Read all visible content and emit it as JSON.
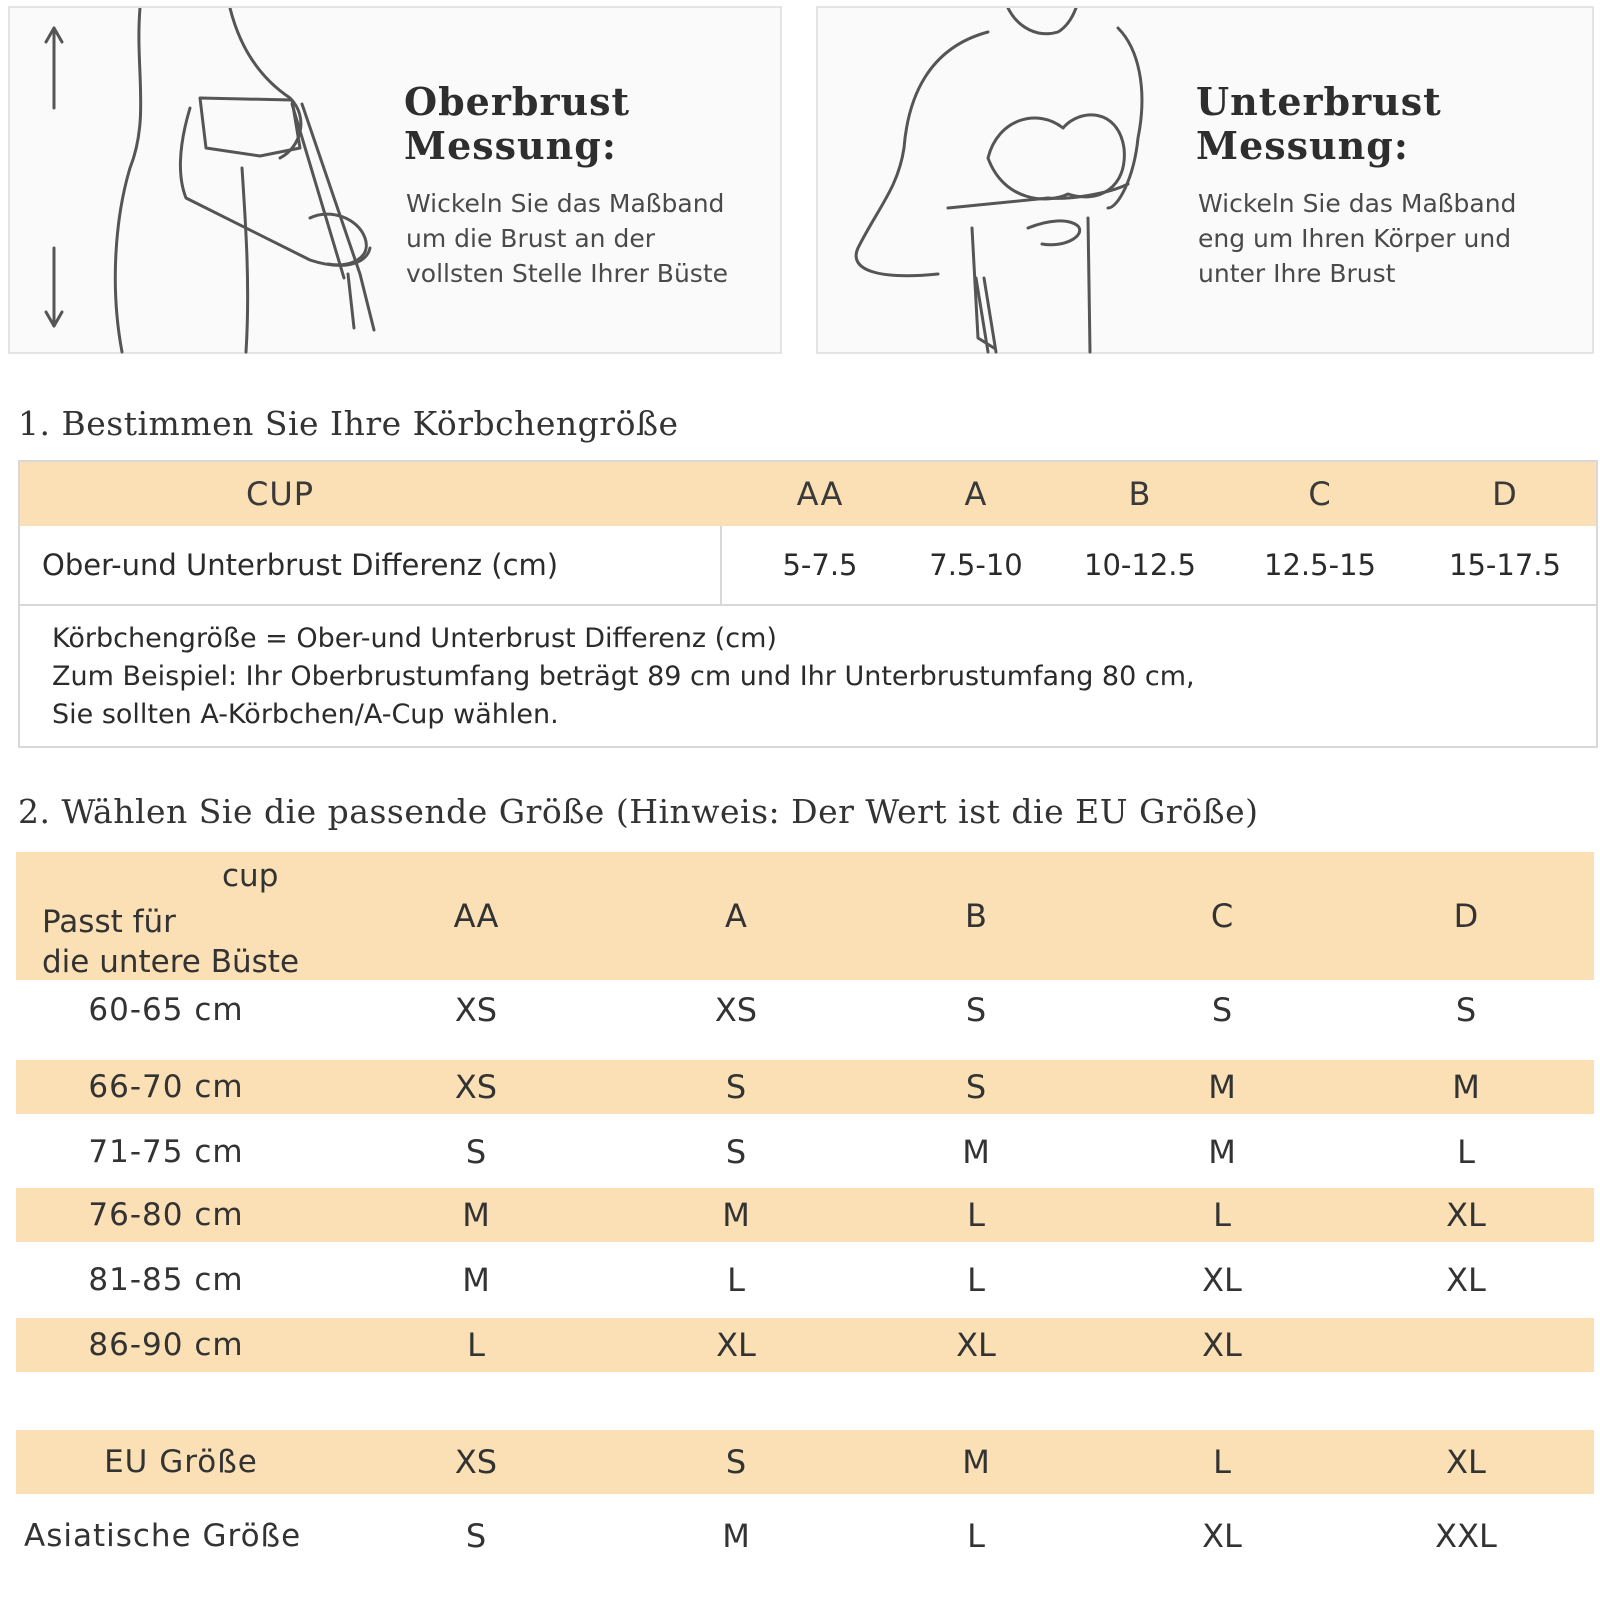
{
  "panels": {
    "left": {
      "title_line1": "Oberbrust",
      "title_line2": "Messung:",
      "text_lines": [
        "Wickeln Sie das Maßband",
        "um die Brust an der",
        "vollsten Stelle Ihrer Büste"
      ]
    },
    "right": {
      "title_line1": "Unterbrust",
      "title_line2": "Messung:",
      "text_lines": [
        "Wickeln Sie das Maßband",
        "eng um Ihren Körper und",
        "unter Ihre Brust"
      ]
    }
  },
  "section1": {
    "title": "1. Bestimmen Sie Ihre Körbchengröße",
    "header_label": "CUP",
    "cups": [
      "AA",
      "A",
      "B",
      "C",
      "D"
    ],
    "row_label": "Ober-und Unterbrust Differenz (cm)",
    "values": [
      "5-7.5",
      "7.5-10",
      "10-12.5",
      "12.5-15",
      "15-17.5"
    ],
    "note_lines": [
      "Körbchengröße = Ober-und Unterbrust Differenz (cm)",
      "Zum Beispiel: Ihr Oberbrustumfang beträgt 89 cm und Ihr Unterbrustumfang 80 cm,",
      "Sie sollten A-Körbchen/A-Cup wählen."
    ]
  },
  "section2": {
    "title": "2. Wählen Sie die passende Größe (Hinweis: Der Wert ist die EU Größe)",
    "header_cup": "cup",
    "header_bust_line1": "Passt für",
    "header_bust_line2": "die untere Büste",
    "cups": [
      "AA",
      "A",
      "B",
      "C",
      "D"
    ],
    "rows": [
      {
        "label": "60-65 cm",
        "values": [
          "XS",
          "XS",
          "S",
          "S",
          "S"
        ]
      },
      {
        "label": "66-70 cm",
        "values": [
          "XS",
          "S",
          "S",
          "M",
          "M"
        ]
      },
      {
        "label": "71-75 cm",
        "values": [
          "S",
          "S",
          "M",
          "M",
          "L"
        ]
      },
      {
        "label": "76-80 cm",
        "values": [
          "M",
          "M",
          "L",
          "L",
          "XL"
        ]
      },
      {
        "label": "81-85 cm",
        "values": [
          "M",
          "L",
          "L",
          "XL",
          "XL"
        ]
      },
      {
        "label": "86-90 cm",
        "values": [
          "L",
          "XL",
          "XL",
          "XL",
          ""
        ]
      }
    ],
    "conversion": [
      {
        "label": "EU Größe",
        "values": [
          "XS",
          "S",
          "M",
          "L",
          "XL"
        ]
      },
      {
        "label": "Asiatische Größe",
        "values": [
          "S",
          "M",
          "L",
          "XL",
          "XXL"
        ]
      }
    ]
  },
  "colors": {
    "band": "#fae0b4",
    "border": "#d8d8d8",
    "panel_bg": "#fafafa"
  }
}
